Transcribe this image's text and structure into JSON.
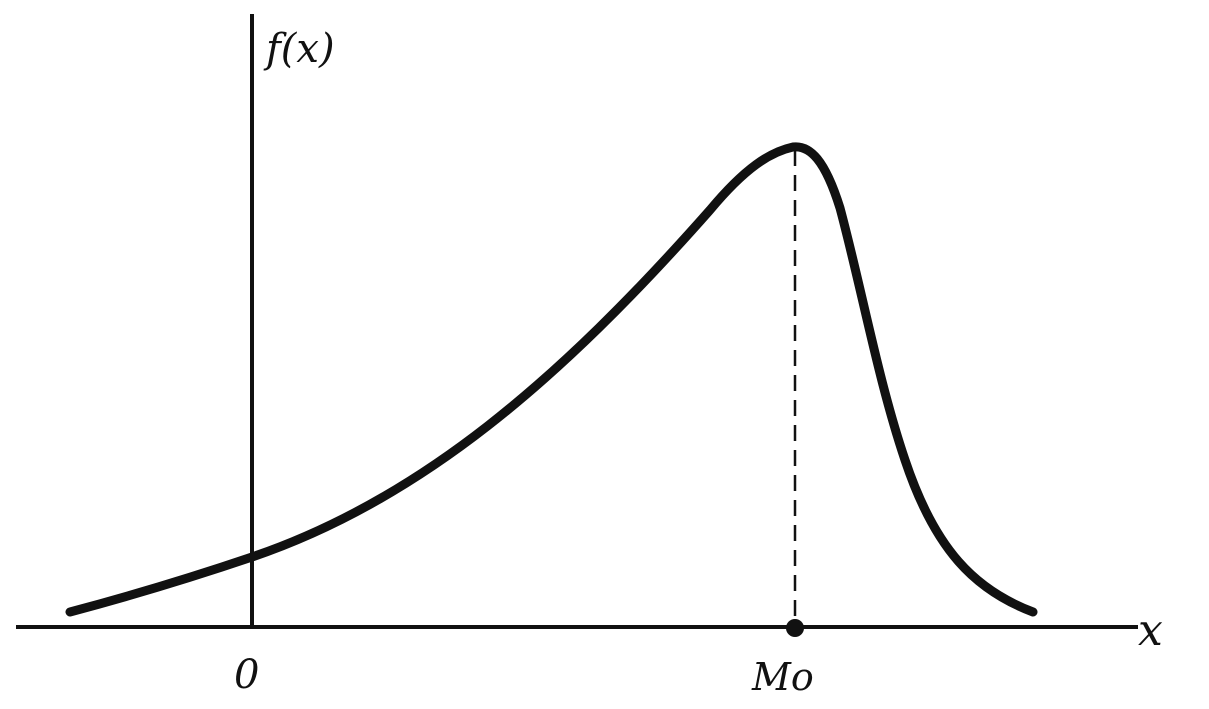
{
  "diagram": {
    "y_axis_label": "f(x)",
    "x_axis_label": "x",
    "origin_label": "0",
    "mode_label": "Mo"
  },
  "colors": {
    "ink": "#111111",
    "background": "#ffffff"
  }
}
